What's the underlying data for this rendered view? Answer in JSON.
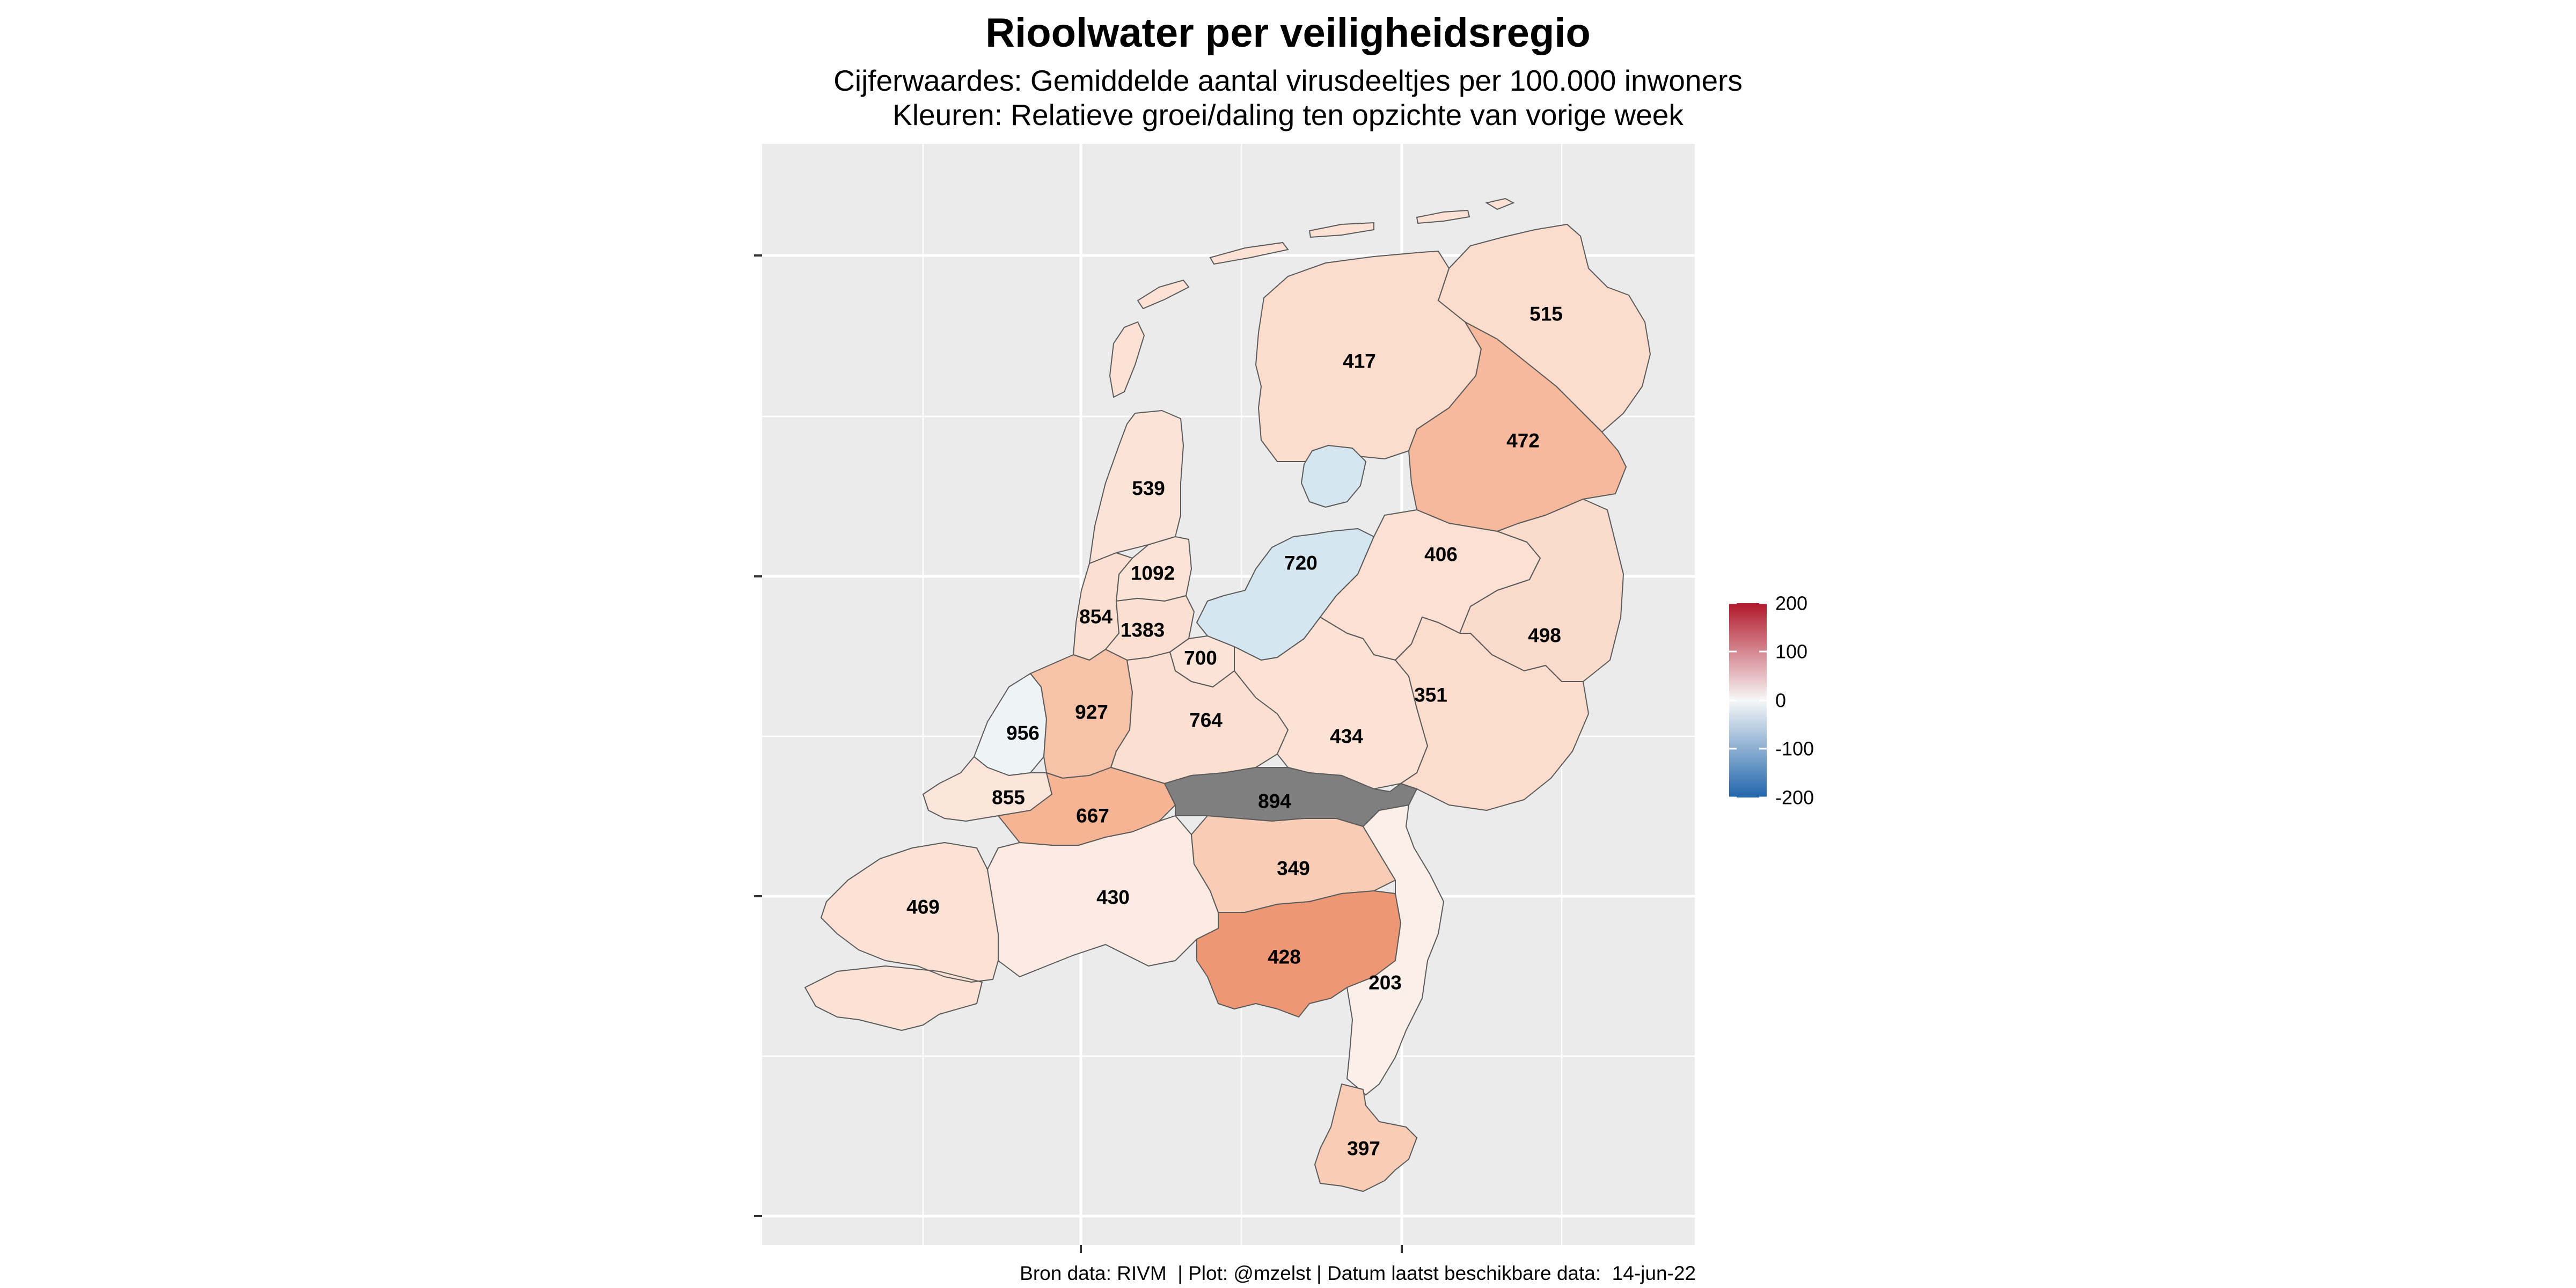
{
  "title": "Rioolwater per veiligheidsregio",
  "subtitle_line1": "Cijferwaardes: Gemiddelde aantal virusdeeltjes per 100.000 inwoners",
  "subtitle_line2": "Kleuren: Relatieve groei/daling ten opzichte van vorige week",
  "caption": "Bron data: RIVM  | Plot: @mzelst | Datum laatst beschikbare data:  14-jun-22",
  "legend": {
    "ticks": [
      "200",
      "100",
      "0",
      "-100",
      "-200"
    ],
    "scale_min": -200,
    "scale_max": 200,
    "color_low": "#2166ac",
    "color_mid": "#f7f7f7",
    "color_high": "#b2182b"
  },
  "colors": {
    "panel_background": "#ebebeb",
    "gridline": "#ffffff",
    "missing": "#7f7f7f",
    "border": "#5a5a5a"
  },
  "regions": [
    {
      "label": "515",
      "color": "#fbdccd"
    },
    {
      "label": "417",
      "color": "#fbdccd"
    },
    {
      "label": "472",
      "color": "#f6b99b"
    },
    {
      "label": "539",
      "color": "#fbe3d7"
    },
    {
      "label": "1092",
      "color": "#fbe3d7"
    },
    {
      "label": "854",
      "color": "#fbdfd0"
    },
    {
      "label": "1383",
      "color": "#fbe0d2"
    },
    {
      "label": "720",
      "color": "#d5e6f0"
    },
    {
      "label": "406",
      "color": "#fbe0d3"
    },
    {
      "label": "498",
      "color": "#fadbcc"
    },
    {
      "label": "700",
      "color": "#fbe3d7"
    },
    {
      "label": "956",
      "color": "#eef3f6"
    },
    {
      "label": "927",
      "color": "#f6c2a8"
    },
    {
      "label": "764",
      "color": "#fbdfd1"
    },
    {
      "label": "434",
      "color": "#fbe2d5"
    },
    {
      "label": "351",
      "color": "#fbdccd"
    },
    {
      "label": "855",
      "color": "#fbe4d9"
    },
    {
      "label": "667",
      "color": "#f5b594"
    },
    {
      "label": "894",
      "color": "#7f7f7f"
    },
    {
      "label": "469",
      "color": "#fbe2d5"
    },
    {
      "label": "430",
      "color": "#fbebe3"
    },
    {
      "label": "349",
      "color": "#f8ccb5"
    },
    {
      "label": "428",
      "color": "#ee9775"
    },
    {
      "label": "203",
      "color": "#faefe9"
    },
    {
      "label": "397",
      "color": "#f8ccb5"
    }
  ]
}
